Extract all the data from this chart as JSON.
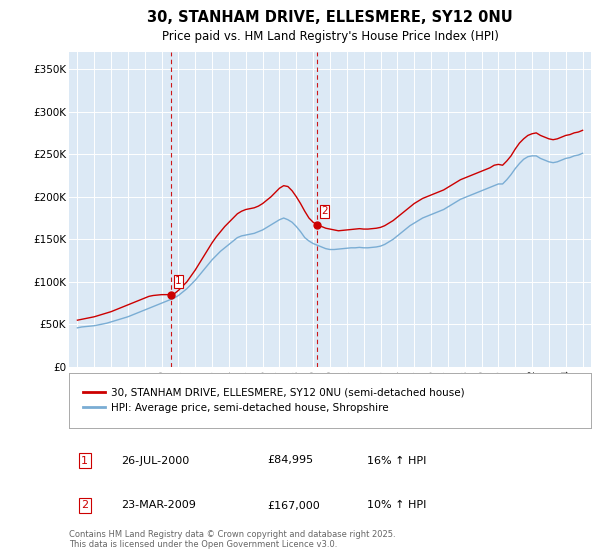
{
  "title": "30, STANHAM DRIVE, ELLESMERE, SY12 0NU",
  "subtitle": "Price paid vs. HM Land Registry's House Price Index (HPI)",
  "background_color": "#ffffff",
  "plot_bg_color": "#dce9f5",
  "ylabel_ticks": [
    "£0",
    "£50K",
    "£100K",
    "£150K",
    "£200K",
    "£250K",
    "£300K",
    "£350K"
  ],
  "ytick_values": [
    0,
    50000,
    100000,
    150000,
    200000,
    250000,
    300000,
    350000
  ],
  "ylim": [
    0,
    370000
  ],
  "xlim_start": 1994.5,
  "xlim_end": 2025.5,
  "transaction1_x": 2000.56,
  "transaction1_y": 84995,
  "transaction1_label": "1",
  "transaction1_date": "26-JUL-2000",
  "transaction1_price": "£84,995",
  "transaction1_hpi": "16% ↑ HPI",
  "transaction2_x": 2009.23,
  "transaction2_y": 167000,
  "transaction2_label": "2",
  "transaction2_date": "23-MAR-2009",
  "transaction2_price": "£167,000",
  "transaction2_hpi": "10% ↑ HPI",
  "red_line_color": "#cc0000",
  "blue_line_color": "#7aadd4",
  "vline_color": "#cc0000",
  "legend1": "30, STANHAM DRIVE, ELLESMERE, SY12 0NU (semi-detached house)",
  "legend2": "HPI: Average price, semi-detached house, Shropshire",
  "footer": "Contains HM Land Registry data © Crown copyright and database right 2025.\nThis data is licensed under the Open Government Licence v3.0.",
  "red_x": [
    1995.0,
    1995.25,
    1995.5,
    1995.75,
    1996.0,
    1996.25,
    1996.5,
    1996.75,
    1997.0,
    1997.25,
    1997.5,
    1997.75,
    1998.0,
    1998.25,
    1998.5,
    1998.75,
    1999.0,
    1999.25,
    1999.5,
    1999.75,
    2000.0,
    2000.25,
    2000.56,
    2000.75,
    2001.0,
    2001.25,
    2001.5,
    2001.75,
    2002.0,
    2002.25,
    2002.5,
    2002.75,
    2003.0,
    2003.25,
    2003.5,
    2003.75,
    2004.0,
    2004.25,
    2004.5,
    2004.75,
    2005.0,
    2005.25,
    2005.5,
    2005.75,
    2006.0,
    2006.25,
    2006.5,
    2006.75,
    2007.0,
    2007.25,
    2007.5,
    2007.75,
    2008.0,
    2008.25,
    2008.5,
    2008.75,
    2009.0,
    2009.23,
    2009.5,
    2009.75,
    2010.0,
    2010.25,
    2010.5,
    2010.75,
    2011.0,
    2011.25,
    2011.5,
    2011.75,
    2012.0,
    2012.25,
    2012.5,
    2012.75,
    2013.0,
    2013.25,
    2013.5,
    2013.75,
    2014.0,
    2014.25,
    2014.5,
    2014.75,
    2015.0,
    2015.25,
    2015.5,
    2015.75,
    2016.0,
    2016.25,
    2016.5,
    2016.75,
    2017.0,
    2017.25,
    2017.5,
    2017.75,
    2018.0,
    2018.25,
    2018.5,
    2018.75,
    2019.0,
    2019.25,
    2019.5,
    2019.75,
    2020.0,
    2020.25,
    2020.5,
    2020.75,
    2021.0,
    2021.25,
    2021.5,
    2021.75,
    2022.0,
    2022.25,
    2022.5,
    2022.75,
    2023.0,
    2023.25,
    2023.5,
    2023.75,
    2024.0,
    2024.25,
    2024.5,
    2024.75,
    2025.0
  ],
  "red_y": [
    55000,
    56000,
    57000,
    58000,
    59000,
    60500,
    62000,
    63500,
    65000,
    67000,
    69000,
    71000,
    73000,
    75000,
    77000,
    79000,
    81000,
    83000,
    84000,
    84500,
    84995,
    84995,
    84995,
    86000,
    90000,
    95000,
    100000,
    107000,
    114000,
    122000,
    130000,
    138000,
    146000,
    153000,
    159000,
    165000,
    170000,
    175000,
    180000,
    183000,
    185000,
    186000,
    187000,
    189000,
    192000,
    196000,
    200000,
    205000,
    210000,
    213000,
    212000,
    207000,
    200000,
    192000,
    183000,
    175000,
    170000,
    167000,
    165000,
    163000,
    162000,
    161000,
    160000,
    160500,
    161000,
    161500,
    162000,
    162500,
    162000,
    162000,
    162500,
    163000,
    164000,
    166000,
    169000,
    172000,
    176000,
    180000,
    184000,
    188000,
    192000,
    195000,
    198000,
    200000,
    202000,
    204000,
    206000,
    208000,
    211000,
    214000,
    217000,
    220000,
    222000,
    224000,
    226000,
    228000,
    230000,
    232000,
    234000,
    237000,
    238000,
    237000,
    242000,
    248000,
    256000,
    263000,
    268000,
    272000,
    274000,
    275000,
    272000,
    270000,
    268000,
    267000,
    268000,
    270000,
    272000,
    273000,
    275000,
    276000,
    278000
  ],
  "blue_x": [
    1995.0,
    1995.25,
    1995.5,
    1995.75,
    1996.0,
    1996.25,
    1996.5,
    1996.75,
    1997.0,
    1997.25,
    1997.5,
    1997.75,
    1998.0,
    1998.25,
    1998.5,
    1998.75,
    1999.0,
    1999.25,
    1999.5,
    1999.75,
    2000.0,
    2000.25,
    2000.5,
    2000.75,
    2001.0,
    2001.25,
    2001.5,
    2001.75,
    2002.0,
    2002.25,
    2002.5,
    2002.75,
    2003.0,
    2003.25,
    2003.5,
    2003.75,
    2004.0,
    2004.25,
    2004.5,
    2004.75,
    2005.0,
    2005.25,
    2005.5,
    2005.75,
    2006.0,
    2006.25,
    2006.5,
    2006.75,
    2007.0,
    2007.25,
    2007.5,
    2007.75,
    2008.0,
    2008.25,
    2008.5,
    2008.75,
    2009.0,
    2009.25,
    2009.5,
    2009.75,
    2010.0,
    2010.25,
    2010.5,
    2010.75,
    2011.0,
    2011.25,
    2011.5,
    2011.75,
    2012.0,
    2012.25,
    2012.5,
    2012.75,
    2013.0,
    2013.25,
    2013.5,
    2013.75,
    2014.0,
    2014.25,
    2014.5,
    2014.75,
    2015.0,
    2015.25,
    2015.5,
    2015.75,
    2016.0,
    2016.25,
    2016.5,
    2016.75,
    2017.0,
    2017.25,
    2017.5,
    2017.75,
    2018.0,
    2018.25,
    2018.5,
    2018.75,
    2019.0,
    2019.25,
    2019.5,
    2019.75,
    2020.0,
    2020.25,
    2020.5,
    2020.75,
    2021.0,
    2021.25,
    2021.5,
    2021.75,
    2022.0,
    2022.25,
    2022.5,
    2022.75,
    2023.0,
    2023.25,
    2023.5,
    2023.75,
    2024.0,
    2024.25,
    2024.5,
    2024.75,
    2025.0
  ],
  "blue_y": [
    46000,
    47000,
    47500,
    48000,
    48500,
    49500,
    50500,
    51500,
    53000,
    54500,
    56000,
    57500,
    59000,
    61000,
    63000,
    65000,
    67000,
    69000,
    71000,
    73000,
    75000,
    77000,
    79000,
    81000,
    84000,
    88000,
    92000,
    97000,
    102000,
    108000,
    114000,
    120000,
    126000,
    131000,
    136000,
    140000,
    144000,
    148000,
    152000,
    154000,
    155000,
    156000,
    157000,
    159000,
    161000,
    164000,
    167000,
    170000,
    173000,
    175000,
    173000,
    170000,
    165000,
    159000,
    152000,
    148000,
    145000,
    143000,
    141000,
    139000,
    138000,
    138000,
    138500,
    139000,
    139500,
    140000,
    140000,
    140500,
    140000,
    140000,
    140500,
    141000,
    142000,
    144000,
    147000,
    150000,
    154000,
    158000,
    162000,
    166000,
    169000,
    172000,
    175000,
    177000,
    179000,
    181000,
    183000,
    185000,
    188000,
    191000,
    194000,
    197000,
    199000,
    201000,
    203000,
    205000,
    207000,
    209000,
    211000,
    213000,
    215000,
    215000,
    220000,
    226000,
    233000,
    239000,
    244000,
    247000,
    248000,
    248000,
    245000,
    243000,
    241000,
    240000,
    241000,
    243000,
    245000,
    246000,
    248000,
    249000,
    251000
  ]
}
